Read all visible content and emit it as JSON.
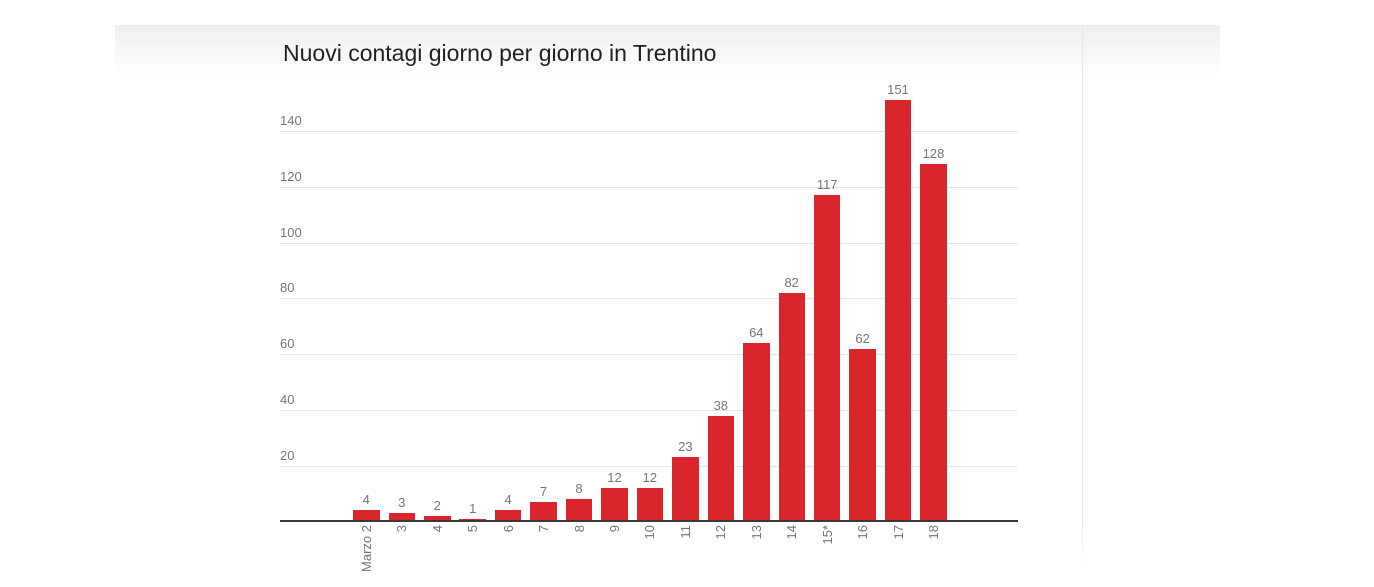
{
  "chart": {
    "bar_color": "#d8262c",
    "grid_color": "#e5e5e5",
    "axis_color": "#383838",
    "label_color": "#757575",
    "title_color": "#212121"
  },
  "chart_data": {
    "type": "bar",
    "title": "Nuovi contagi giorno per giorno in Trentino",
    "categories": [
      "Marzo 2",
      "3",
      "4",
      "5",
      "6",
      "7",
      "8",
      "9",
      "10",
      "11",
      "12",
      "13",
      "14",
      "15*",
      "16",
      "17",
      "18"
    ],
    "values": [
      4,
      3,
      2,
      1,
      4,
      7,
      8,
      12,
      12,
      23,
      38,
      64,
      82,
      117,
      62,
      151,
      128
    ],
    "y_ticks": [
      20,
      40,
      60,
      80,
      100,
      120,
      140
    ],
    "ylim": [
      0,
      155
    ],
    "xlabel": "",
    "ylabel": "",
    "grid": true,
    "legend": "none",
    "bar_value_labels": true,
    "x_label_rotation": -90
  }
}
